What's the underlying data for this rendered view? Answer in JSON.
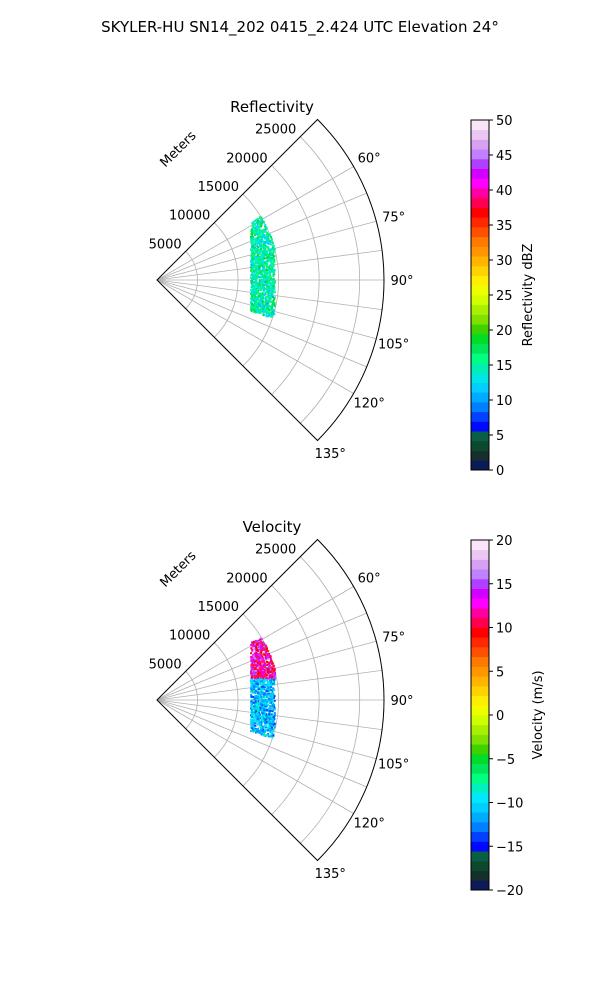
{
  "figure": {
    "suptitle": "SKYLER-HU  SN14_202  0415_2.424 UTC Elevation 24°"
  },
  "chart_data": [
    {
      "type": "polar-sector",
      "title": "Reflectivity",
      "radial_label": "Meters",
      "theta_range_deg": [
        45,
        135
      ],
      "r_range": [
        0,
        28000
      ],
      "r_ticks": [
        5000,
        10000,
        15000,
        20000,
        25000
      ],
      "r_tick_labels": [
        "5000",
        "10000",
        "15000",
        "20000",
        "25000"
      ],
      "theta_ticks": [
        60,
        75,
        90,
        105,
        120,
        135
      ],
      "theta_tick_labels": [
        "60°",
        "75°",
        "90°",
        "105°",
        "120°",
        "135°"
      ],
      "grid": true,
      "colorbar": {
        "label": "Reflectivity dBZ",
        "range": [
          0,
          50
        ],
        "ticks": [
          0,
          5,
          10,
          15,
          20,
          25,
          30,
          35,
          40,
          45,
          50
        ],
        "tick_labels": [
          "0",
          "5",
          "10",
          "15",
          "20",
          "25",
          "30",
          "35",
          "40",
          "45",
          "50"
        ]
      },
      "echo_band": {
        "range_m": [
          9000,
          12500
        ],
        "azimuth_deg": [
          58,
          108
        ],
        "value_range": [
          10,
          20
        ]
      }
    },
    {
      "type": "polar-sector",
      "title": "Velocity",
      "radial_label": "Meters",
      "theta_range_deg": [
        45,
        135
      ],
      "r_range": [
        0,
        28000
      ],
      "r_ticks": [
        5000,
        10000,
        15000,
        20000,
        25000
      ],
      "r_tick_labels": [
        "5000",
        "10000",
        "15000",
        "20000",
        "25000"
      ],
      "theta_ticks": [
        60,
        75,
        90,
        105,
        120,
        135
      ],
      "theta_tick_labels": [
        "60°",
        "75°",
        "90°",
        "105°",
        "120°",
        "135°"
      ],
      "grid": true,
      "colorbar": {
        "label": "Velocity (m/s)",
        "range": [
          -20,
          20
        ],
        "ticks": [
          -20,
          -15,
          -10,
          -5,
          0,
          5,
          10,
          15,
          20
        ],
        "tick_labels": [
          "−20",
          "−15",
          "−10",
          "−5",
          "0",
          "5",
          "10",
          "15",
          "20"
        ]
      },
      "echo_band": {
        "range_m": [
          9000,
          12500
        ],
        "azimuth_deg": [
          58,
          108
        ],
        "value_range": [
          -14,
          16
        ]
      }
    }
  ],
  "colors": {
    "reflectivity_scale": [
      "#0c1a57",
      "#152e2e",
      "#0b4a2f",
      "#0a5e46",
      "#0008ff",
      "#0040ff",
      "#0080ff",
      "#00aaff",
      "#00cfff",
      "#00e5e5",
      "#00f0b0",
      "#00ff80",
      "#00e65a",
      "#00dc28",
      "#40d200",
      "#80e000",
      "#a8f000",
      "#d0ff00",
      "#f0ff00",
      "#ffee00",
      "#ffd200",
      "#ffb400",
      "#ff9600",
      "#ff7800",
      "#ff5000",
      "#ff2800",
      "#ff0000",
      "#ff0050",
      "#ff00a0",
      "#ff00ff",
      "#d400ff",
      "#b040ff",
      "#c080ff",
      "#d8a0f0",
      "#ecc6f2",
      "#f8e6f8"
    ],
    "velocity_scale": [
      "#0c1a57",
      "#152e2e",
      "#0b4a2f",
      "#0a5e46",
      "#0008ff",
      "#0040ff",
      "#0080ff",
      "#00aaff",
      "#00cfff",
      "#00e8ff",
      "#00f0c0",
      "#00ff80",
      "#00e65a",
      "#00dc28",
      "#40d200",
      "#80e000",
      "#a8f000",
      "#d0ff00",
      "#f0ff00",
      "#ffee00",
      "#ffd200",
      "#ffb400",
      "#ff9600",
      "#ff7800",
      "#ff5000",
      "#ff2800",
      "#ff0000",
      "#ff0050",
      "#ff00a0",
      "#ff00ff",
      "#d400ff",
      "#b040ff",
      "#c080ff",
      "#d8a0f0",
      "#ecc6f2",
      "#f8e6f8"
    ]
  }
}
